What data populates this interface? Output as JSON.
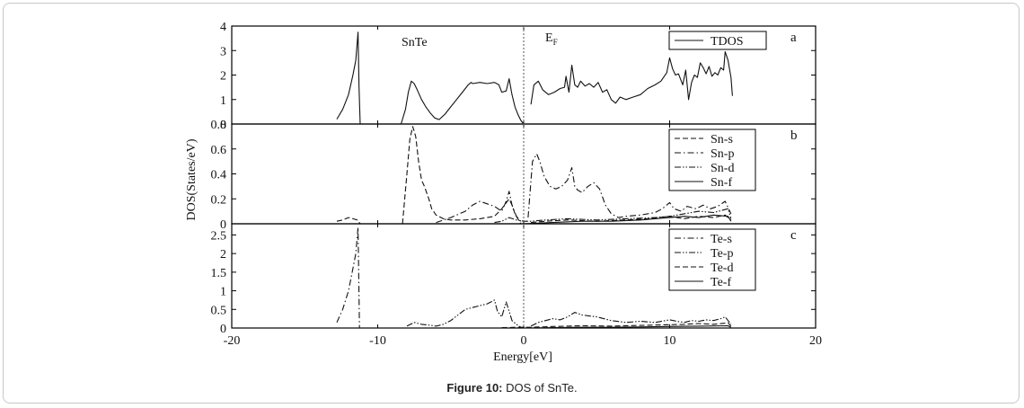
{
  "caption": {
    "label": "Figure 10:",
    "text": "DOS of SnTe."
  },
  "chart_data": {
    "type": "line",
    "xlabel": "Energy[eV]",
    "ylabel": "DOS(States/eV)",
    "xlim": [
      -20,
      20
    ],
    "x_ticks": [
      -20,
      -10,
      0,
      10,
      20
    ],
    "fermi_level": 0,
    "panels": [
      {
        "id": "a",
        "panel_label": "a",
        "annotations": [
          "SnTe",
          "E",
          "F"
        ],
        "ylim": [
          0,
          4
        ],
        "y_tick_labels": [
          "0",
          "1",
          "2",
          "3",
          "4"
        ],
        "y_tick_values": [
          0,
          1,
          2,
          3,
          4
        ],
        "legend": [
          "TDOS"
        ],
        "series": [
          {
            "name": "TDOS",
            "style": "solid",
            "segments": [
              {
                "x": [
                  -12.8,
                  -12.4,
                  -12.0,
                  -11.7,
                  -11.5,
                  -11.35,
                  -11.28,
                  -11.2
                ],
                "y": [
                  0.2,
                  0.6,
                  1.2,
                  2.0,
                  2.6,
                  3.75,
                  1.5,
                  0.0
                ]
              },
              {
                "x": [
                  -8.4,
                  -8.1,
                  -7.9,
                  -7.7,
                  -7.5,
                  -7.3,
                  -7.0,
                  -6.7,
                  -6.4,
                  -6.1,
                  -5.8,
                  -5.4,
                  -5.0,
                  -4.6,
                  -4.2,
                  -3.8,
                  -3.6,
                  -3.5,
                  -3.0,
                  -2.5,
                  -2.0,
                  -1.7,
                  -1.5,
                  -1.2,
                  -1.0,
                  -0.8,
                  -0.6,
                  -0.4,
                  -0.2,
                  0.0
                ],
                "y": [
                  0.0,
                  0.6,
                  1.3,
                  1.75,
                  1.65,
                  1.4,
                  1.0,
                  0.7,
                  0.45,
                  0.25,
                  0.18,
                  0.4,
                  0.7,
                  1.0,
                  1.3,
                  1.6,
                  1.7,
                  1.65,
                  1.7,
                  1.65,
                  1.7,
                  1.6,
                  1.3,
                  1.35,
                  1.85,
                  1.2,
                  0.7,
                  0.4,
                  0.15,
                  0.0
                ]
              },
              {
                "x": [
                  0.5,
                  0.7,
                  1.0,
                  1.3,
                  1.7,
                  2.1,
                  2.5,
                  2.8,
                  2.9,
                  3.1,
                  3.3,
                  3.5,
                  3.7,
                  3.9,
                  4.2,
                  4.5,
                  4.8,
                  5.1,
                  5.4,
                  5.7,
                  6.0,
                  6.3,
                  6.6,
                  7.0,
                  7.5,
                  8.0,
                  8.5,
                  9.0,
                  9.4,
                  9.8,
                  10.0,
                  10.2,
                  10.4,
                  10.6,
                  10.9,
                  11.1,
                  11.3,
                  11.5,
                  11.7,
                  11.9,
                  12.1,
                  12.3,
                  12.5,
                  12.7,
                  12.9,
                  13.1,
                  13.3,
                  13.5,
                  13.7,
                  13.8,
                  14.0,
                  14.2,
                  14.3
                ],
                "y": [
                  0.8,
                  1.6,
                  1.75,
                  1.4,
                  1.2,
                  1.3,
                  1.45,
                  1.5,
                  1.95,
                  1.3,
                  2.4,
                  1.6,
                  1.5,
                  1.75,
                  1.55,
                  1.65,
                  1.5,
                  1.7,
                  1.3,
                  1.4,
                  1.0,
                  0.85,
                  1.1,
                  1.0,
                  1.1,
                  1.2,
                  1.45,
                  1.6,
                  1.75,
                  2.1,
                  2.7,
                  2.25,
                  2.0,
                  2.05,
                  1.6,
                  2.2,
                  1.0,
                  1.7,
                  2.0,
                  1.9,
                  2.5,
                  2.3,
                  2.05,
                  2.35,
                  1.95,
                  2.1,
                  2.0,
                  2.3,
                  2.2,
                  2.95,
                  2.6,
                  1.9,
                  1.15
                ]
              }
            ]
          }
        ]
      },
      {
        "id": "b",
        "panel_label": "b",
        "ylim": [
          0,
          0.8
        ],
        "y_tick_labels": [
          "0",
          "0.2",
          "0.4",
          "0.6",
          "0.8"
        ],
        "y_tick_values": [
          0,
          0.2,
          0.4,
          0.6,
          0.8
        ],
        "legend": [
          "Sn-s",
          "Sn-p",
          "Sn-d",
          "Sn-f"
        ],
        "series": [
          {
            "name": "Sn-s",
            "style": "dashed",
            "segments": [
              {
                "x": [
                  -12.8,
                  -12.4,
                  -12.0,
                  -11.7,
                  -11.4,
                  -11.2
                ],
                "y": [
                  0.02,
                  0.03,
                  0.05,
                  0.04,
                  0.03,
                  0.0
                ]
              },
              {
                "x": [
                  -8.3,
                  -8.0,
                  -7.8,
                  -7.6,
                  -7.4,
                  -7.2,
                  -7.0,
                  -6.8,
                  -6.5,
                  -6.3,
                  -6.0,
                  -5.5,
                  -5.0,
                  -4.0,
                  -3.0,
                  -2.0,
                  -1.5,
                  -1.0,
                  -0.8,
                  -0.6,
                  -0.4,
                  -0.2
                ],
                "y": [
                  0.0,
                  0.4,
                  0.68,
                  0.78,
                  0.7,
                  0.5,
                  0.35,
                  0.3,
                  0.2,
                  0.12,
                  0.07,
                  0.04,
                  0.03,
                  0.03,
                  0.04,
                  0.06,
                  0.12,
                  0.2,
                  0.15,
                  0.08,
                  0.04,
                  0.0
                ]
              },
              {
                "x": [
                  0.5,
                  1.5,
                  3.0,
                  5.0,
                  7.0,
                  8.5,
                  10.0,
                  10.5,
                  11.0,
                  12.0,
                  13.0,
                  13.8,
                  14.2
                ],
                "y": [
                  0.01,
                  0.02,
                  0.03,
                  0.02,
                  0.03,
                  0.04,
                  0.06,
                  0.05,
                  0.04,
                  0.06,
                  0.05,
                  0.07,
                  0.03
                ]
              }
            ]
          },
          {
            "name": "Sn-p",
            "style": "dashdot",
            "segments": [
              {
                "x": [
                  -6.0,
                  -5.0,
                  -4.0,
                  -3.5,
                  -3.0,
                  -2.5,
                  -2.0,
                  -1.5,
                  -1.2,
                  -1.0,
                  -0.8,
                  -0.5,
                  -0.2
                ],
                "y": [
                  0.01,
                  0.05,
                  0.1,
                  0.15,
                  0.18,
                  0.16,
                  0.14,
                  0.1,
                  0.18,
                  0.26,
                  0.15,
                  0.06,
                  0.02
                ]
              },
              {
                "x": [
                  0.3,
                  0.6,
                  0.9,
                  1.1,
                  1.4,
                  1.8,
                  2.2,
                  2.6,
                  3.0,
                  3.3,
                  3.5,
                  3.7,
                  4.0,
                  4.4,
                  4.8,
                  5.2,
                  5.6,
                  6.0,
                  6.5,
                  7.0,
                  8.0,
                  9.0,
                  9.5,
                  10.0,
                  10.3,
                  10.8,
                  11.2,
                  11.8,
                  12.3,
                  12.8,
                  13.3,
                  13.8,
                  14.2
                ],
                "y": [
                  0.05,
                  0.5,
                  0.56,
                  0.5,
                  0.38,
                  0.3,
                  0.28,
                  0.3,
                  0.35,
                  0.45,
                  0.3,
                  0.27,
                  0.25,
                  0.3,
                  0.33,
                  0.28,
                  0.15,
                  0.08,
                  0.05,
                  0.06,
                  0.07,
                  0.09,
                  0.12,
                  0.17,
                  0.12,
                  0.1,
                  0.14,
                  0.12,
                  0.15,
                  0.12,
                  0.14,
                  0.18,
                  0.08
                ]
              }
            ]
          },
          {
            "name": "Sn-d",
            "style": "dashdotdot",
            "segments": [
              {
                "x": [
                  -2.0,
                  -1.5,
                  -1.0,
                  -0.5,
                  0.0,
                  0.5,
                  1.5,
                  3.0,
                  5.0,
                  7.0,
                  9.0,
                  10.0,
                  11.0,
                  12.0,
                  13.0,
                  14.0,
                  14.2
                ],
                "y": [
                  0.01,
                  0.02,
                  0.05,
                  0.03,
                  0.02,
                  0.02,
                  0.03,
                  0.04,
                  0.03,
                  0.04,
                  0.05,
                  0.06,
                  0.08,
                  0.1,
                  0.09,
                  0.12,
                  0.04
                ]
              }
            ]
          },
          {
            "name": "Sn-f",
            "style": "solid",
            "segments": [
              {
                "x": [
                  0.0,
                  2.0,
                  4.0,
                  6.0,
                  8.0,
                  10.0,
                  11.0,
                  12.0,
                  13.0,
                  14.0,
                  14.2
                ],
                "y": [
                  0.0,
                  0.01,
                  0.02,
                  0.02,
                  0.03,
                  0.05,
                  0.06,
                  0.05,
                  0.07,
                  0.06,
                  0.02
                ]
              }
            ]
          }
        ]
      },
      {
        "id": "c",
        "panel_label": "c",
        "ylim": [
          0,
          2.8
        ],
        "y_tick_labels": [
          "0",
          "0.5",
          "1",
          "1.5",
          "2",
          "2.5"
        ],
        "y_tick_values": [
          0,
          0.5,
          1,
          1.5,
          2,
          2.5
        ],
        "legend": [
          "Te-s",
          "Te-p",
          "Te-d",
          "Te-f"
        ],
        "series": [
          {
            "name": "Te-s",
            "style": "dashdot",
            "segments": [
              {
                "x": [
                  -12.8,
                  -12.4,
                  -12.0,
                  -11.7,
                  -11.5,
                  -11.35,
                  -11.25
                ],
                "y": [
                  0.15,
                  0.5,
                  1.0,
                  1.6,
                  2.0,
                  2.7,
                  0.0
                ]
              }
            ]
          },
          {
            "name": "Te-p",
            "style": "dashdotdot",
            "segments": [
              {
                "x": [
                  -8.0,
                  -7.5,
                  -7.0,
                  -6.5,
                  -6.0,
                  -5.5,
                  -5.0,
                  -4.5,
                  -4.0,
                  -3.5,
                  -3.0,
                  -2.5,
                  -2.0,
                  -1.8,
                  -1.5,
                  -1.2,
                  -1.0,
                  -0.8,
                  -0.5,
                  -0.2
                ],
                "y": [
                  0.05,
                  0.15,
                  0.1,
                  0.08,
                  0.05,
                  0.1,
                  0.2,
                  0.35,
                  0.5,
                  0.55,
                  0.6,
                  0.65,
                  0.75,
                  0.45,
                  0.3,
                  0.7,
                  0.45,
                  0.2,
                  0.1,
                  0.02
                ]
              },
              {
                "x": [
                  0.5,
                  1.0,
                  1.5,
                  2.0,
                  2.5,
                  3.0,
                  3.5,
                  4.0,
                  5.0,
                  6.0,
                  7.0,
                  8.0,
                  9.0,
                  10.0,
                  10.5,
                  11.0,
                  11.5,
                  12.0,
                  12.5,
                  13.0,
                  13.5,
                  13.8,
                  14.2
                ],
                "y": [
                  0.05,
                  0.15,
                  0.2,
                  0.25,
                  0.22,
                  0.3,
                  0.42,
                  0.35,
                  0.3,
                  0.2,
                  0.15,
                  0.18,
                  0.15,
                  0.22,
                  0.18,
                  0.15,
                  0.2,
                  0.18,
                  0.22,
                  0.2,
                  0.25,
                  0.3,
                  0.1
                ]
              }
            ]
          },
          {
            "name": "Te-d",
            "style": "dashed",
            "segments": [
              {
                "x": [
                  -1.5,
                  -0.5,
                  0.5,
                  2.0,
                  4.0,
                  6.0,
                  8.0,
                  10.0,
                  11.0,
                  12.0,
                  13.0,
                  14.0,
                  14.2
                ],
                "y": [
                  0.01,
                  0.02,
                  0.02,
                  0.04,
                  0.06,
                  0.05,
                  0.07,
                  0.09,
                  0.1,
                  0.12,
                  0.1,
                  0.14,
                  0.05
                ]
              }
            ]
          },
          {
            "name": "Te-f",
            "style": "solid",
            "segments": [
              {
                "x": [
                  0.0,
                  2.0,
                  4.0,
                  6.0,
                  8.0,
                  10.0,
                  12.0,
                  14.0,
                  14.2
                ],
                "y": [
                  0.0,
                  0.01,
                  0.02,
                  0.02,
                  0.03,
                  0.04,
                  0.05,
                  0.06,
                  0.02
                ]
              }
            ]
          }
        ]
      }
    ]
  }
}
